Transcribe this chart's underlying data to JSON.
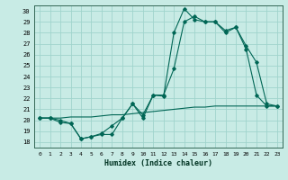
{
  "xlabel": "Humidex (Indice chaleur)",
  "xlim": [
    -0.5,
    23.5
  ],
  "ylim": [
    17.5,
    30.5
  ],
  "xticks": [
    0,
    1,
    2,
    3,
    4,
    5,
    6,
    7,
    8,
    9,
    10,
    11,
    12,
    13,
    14,
    15,
    16,
    17,
    18,
    19,
    20,
    21,
    22,
    23
  ],
  "yticks": [
    18,
    19,
    20,
    21,
    22,
    23,
    24,
    25,
    26,
    27,
    28,
    29,
    30
  ],
  "bg_color": "#c8ebe5",
  "grid_color": "#a0d4cc",
  "line_color": "#006655",
  "line1_x": [
    0,
    1,
    2,
    3,
    4,
    5,
    6,
    7,
    8,
    9,
    10,
    11,
    12,
    13,
    14,
    15,
    16,
    17,
    18,
    19,
    20,
    21,
    22,
    23
  ],
  "line1_y": [
    20.2,
    20.2,
    19.8,
    19.7,
    18.3,
    18.5,
    18.7,
    18.7,
    20.2,
    21.5,
    20.2,
    22.3,
    22.2,
    28.0,
    30.2,
    29.2,
    29.0,
    29.0,
    28.2,
    28.5,
    26.5,
    22.3,
    21.3,
    21.3
  ],
  "line2_x": [
    0,
    1,
    2,
    3,
    4,
    5,
    6,
    7,
    8,
    9,
    10,
    11,
    12,
    13,
    14,
    15,
    16,
    17,
    18,
    19,
    20,
    21,
    22,
    23
  ],
  "line2_y": [
    20.2,
    20.2,
    20.0,
    19.7,
    18.3,
    18.5,
    18.8,
    19.5,
    20.2,
    21.5,
    20.5,
    22.3,
    22.3,
    24.7,
    29.0,
    29.5,
    29.0,
    29.0,
    28.0,
    28.5,
    26.8,
    25.3,
    21.5,
    21.3
  ],
  "line3_x": [
    0,
    1,
    2,
    3,
    4,
    5,
    6,
    7,
    8,
    9,
    10,
    11,
    12,
    13,
    14,
    15,
    16,
    17,
    18,
    19,
    20,
    21,
    22,
    23
  ],
  "line3_y": [
    20.2,
    20.2,
    20.2,
    20.3,
    20.3,
    20.3,
    20.4,
    20.5,
    20.5,
    20.6,
    20.7,
    20.8,
    20.9,
    21.0,
    21.1,
    21.2,
    21.2,
    21.3,
    21.3,
    21.3,
    21.3,
    21.3,
    21.3,
    21.3
  ]
}
